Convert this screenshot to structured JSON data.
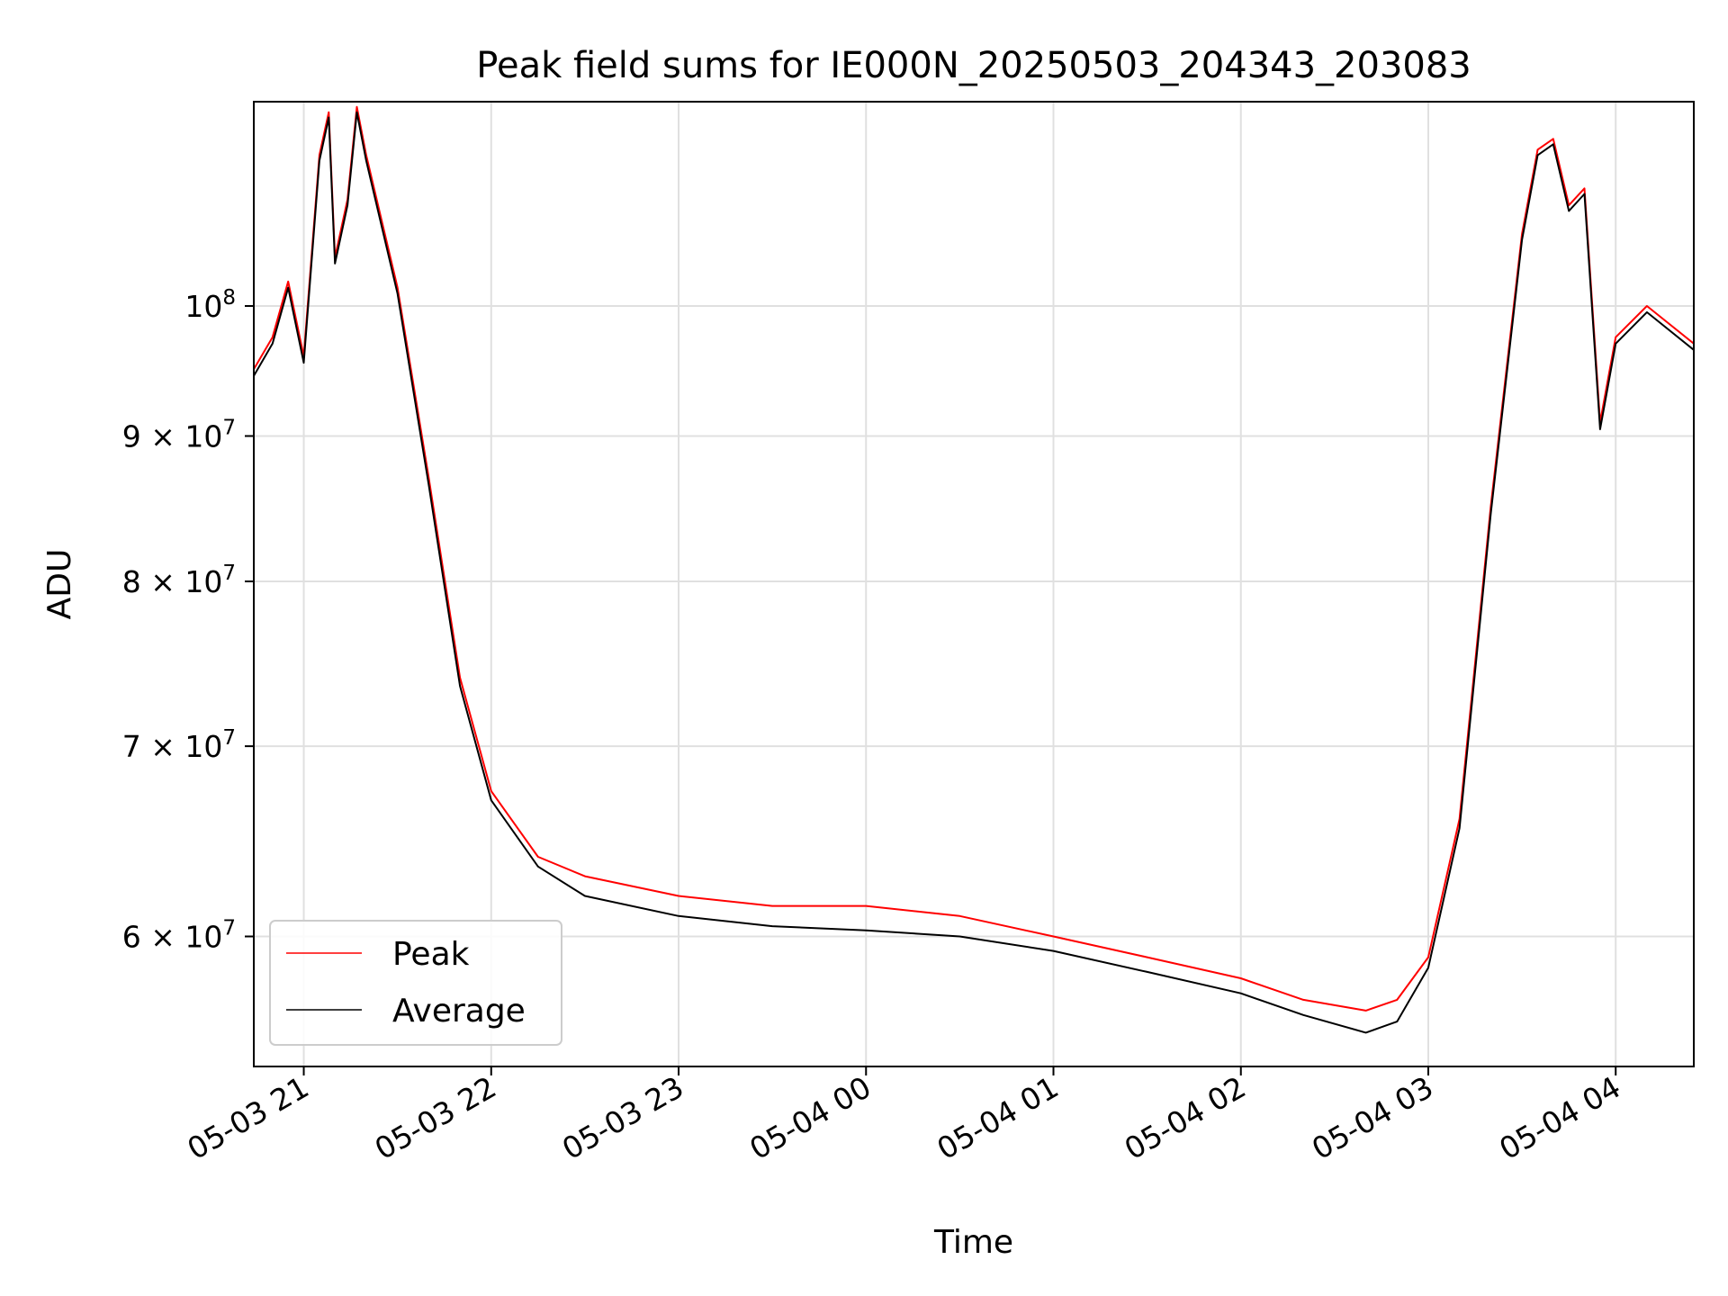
{
  "chart_data": {
    "type": "line",
    "title": "Peak field sums for IE000N_20250503_204343_203083",
    "xlabel": "Time",
    "ylabel": "ADU",
    "yscale": "log",
    "ylim": [
      54000000,
      118000000
    ],
    "xlim": [
      "05-03 20:44",
      "05-04 04:25"
    ],
    "x_ticks": [
      "05-03 21",
      "05-03 22",
      "05-03 23",
      "05-04 00",
      "05-04 01",
      "05-04 02",
      "05-04 03",
      "05-04 04"
    ],
    "y_ticks": [
      {
        "value": 60000000,
        "mant": "6",
        "exp": "7"
      },
      {
        "value": 70000000,
        "mant": "7",
        "exp": "7"
      },
      {
        "value": 80000000,
        "mant": "8",
        "exp": "7"
      },
      {
        "value": 90000000,
        "mant": "9",
        "exp": "7"
      },
      {
        "value": 100000000,
        "mant": "",
        "exp": "8"
      }
    ],
    "grid": true,
    "legend_position": "lower-left",
    "x_times": [
      "05-03 20:44",
      "05-03 20:50",
      "05-03 20:55",
      "05-03 21:00",
      "05-03 21:05",
      "05-03 21:08",
      "05-03 21:10",
      "05-03 21:14",
      "05-03 21:17",
      "05-03 21:20",
      "05-03 21:30",
      "05-03 21:40",
      "05-03 21:50",
      "05-03 22:00",
      "05-03 22:15",
      "05-03 22:30",
      "05-03 23:00",
      "05-03 23:30",
      "05-04 00:00",
      "05-04 00:30",
      "05-04 01:00",
      "05-04 01:30",
      "05-04 02:00",
      "05-04 02:20",
      "05-04 02:40",
      "05-04 02:50",
      "05-04 03:00",
      "05-04 03:10",
      "05-04 03:20",
      "05-04 03:30",
      "05-04 03:35",
      "05-04 03:40",
      "05-04 03:45",
      "05-04 03:50",
      "05-04 03:55",
      "05-04 04:00",
      "05-04 04:10",
      "05-04 04:25"
    ],
    "series": [
      {
        "name": "Peak",
        "color": "#ff0000",
        "values": [
          95000000,
          97500000,
          102000000,
          96000000,
          113000000,
          117000000,
          104000000,
          109000000,
          117500000,
          113000000,
          101500000,
          87000000,
          74000000,
          67500000,
          64000000,
          63000000,
          62000000,
          61500000,
          61500000,
          61000000,
          60000000,
          59000000,
          58000000,
          57000000,
          56500000,
          57000000,
          59000000,
          66000000,
          85000000,
          106000000,
          113500000,
          114500000,
          108500000,
          110000000,
          91000000,
          97500000,
          100000000,
          97000000
        ]
      },
      {
        "name": "Average",
        "color": "#000000",
        "values": [
          94500000,
          97000000,
          101500000,
          95500000,
          112500000,
          116500000,
          103500000,
          108500000,
          117000000,
          112500000,
          101000000,
          86500000,
          73500000,
          67000000,
          63500000,
          62000000,
          61000000,
          60500000,
          60300000,
          60000000,
          59300000,
          58300000,
          57300000,
          56300000,
          55500000,
          56000000,
          58500000,
          65500000,
          84500000,
          105500000,
          113000000,
          114000000,
          108000000,
          109500000,
          90500000,
          97000000,
          99500000,
          96500000
        ]
      }
    ]
  }
}
